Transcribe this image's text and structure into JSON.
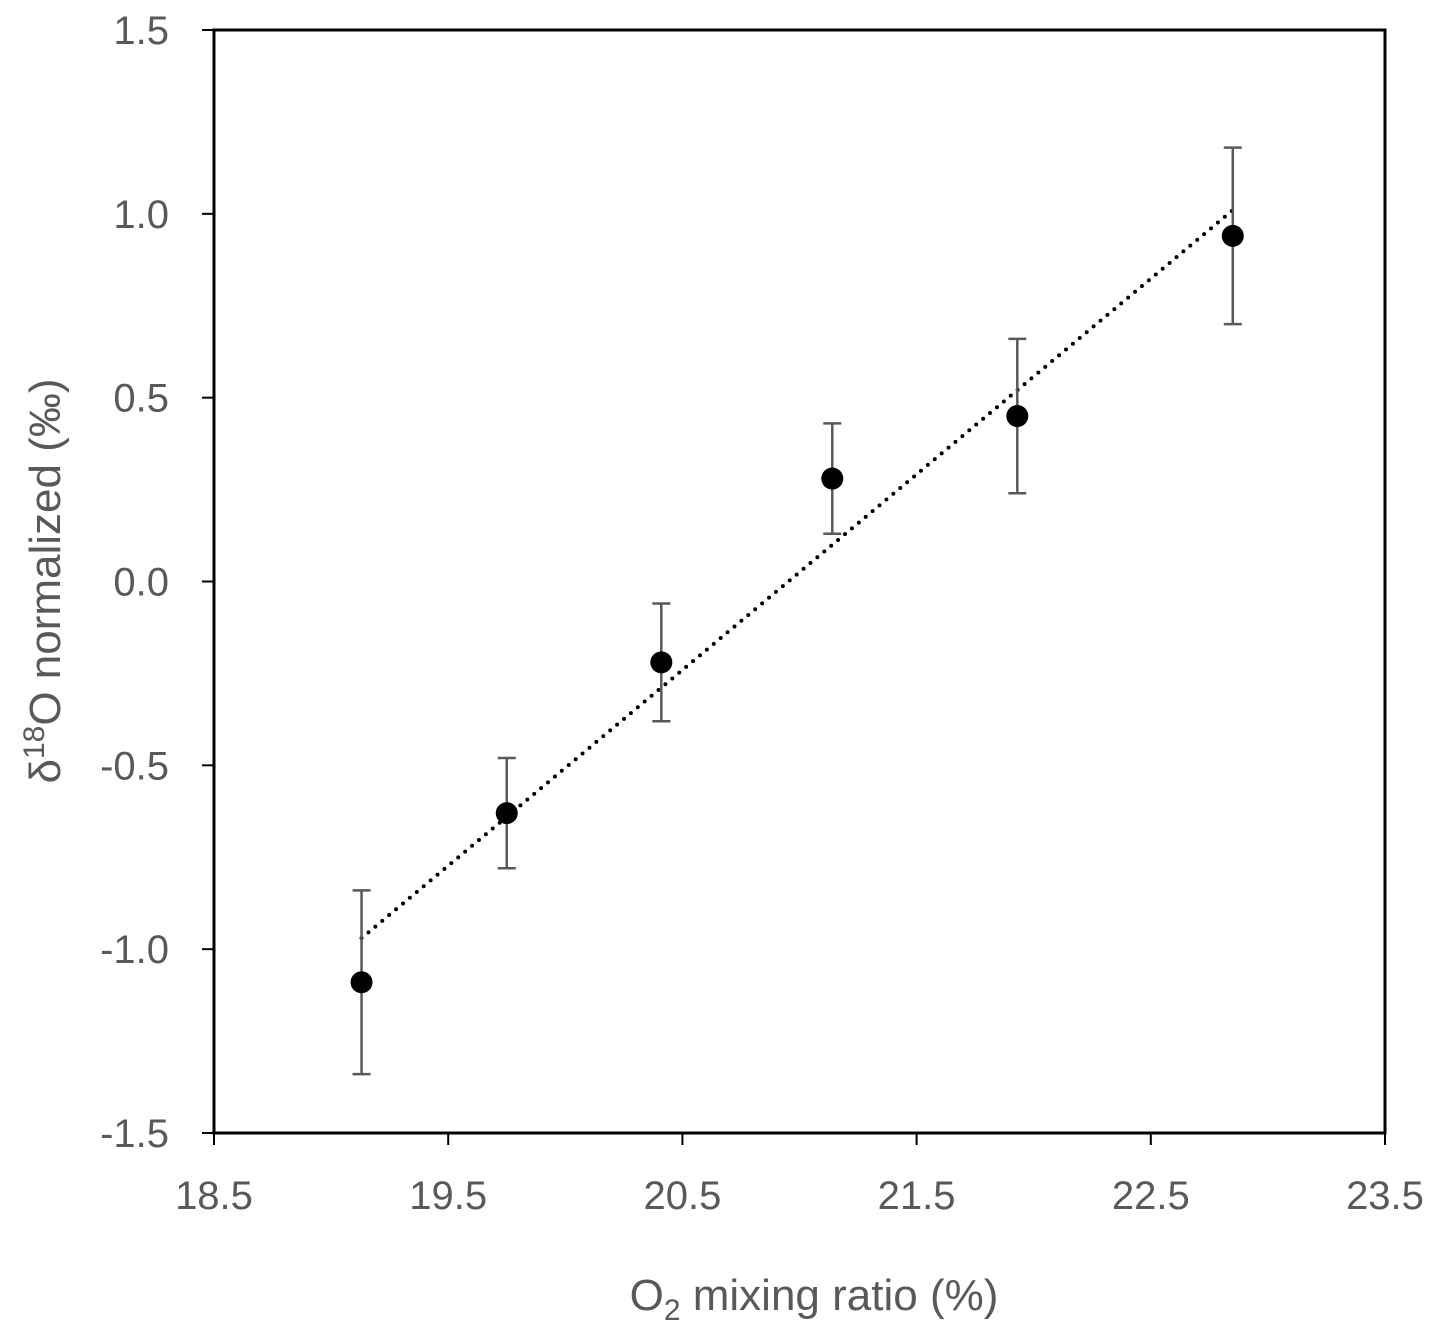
{
  "chart_data": {
    "type": "scatter",
    "title": "",
    "xlabel": {
      "base": "O",
      "sub": "2",
      "rest": " mixing ratio (%)"
    },
    "ylabel": {
      "pre": "δ",
      "sup": "18",
      "rest": "O normalized (‰)"
    },
    "xlim": [
      18.5,
      23.5
    ],
    "ylim": [
      -1.5,
      1.5
    ],
    "x_ticks": [
      18.5,
      19.5,
      20.5,
      21.5,
      22.5,
      23.5
    ],
    "x_tick_labels": [
      "18.5",
      "19.5",
      "20.5",
      "21.5",
      "22.5",
      "23.5"
    ],
    "y_ticks": [
      1.5,
      1.0,
      0.5,
      0.0,
      -0.5,
      -1.0,
      -1.5
    ],
    "y_tick_labels": [
      "1.5",
      "1.0",
      "0.5",
      "0.0",
      "-0.5",
      "-1.0",
      "-1.5"
    ],
    "grid": false,
    "legend": "none",
    "series": [
      {
        "x": [
          19.13,
          19.75,
          20.41,
          21.14,
          21.93,
          22.85
        ],
        "y": [
          -1.09,
          -0.63,
          -0.22,
          0.28,
          0.45,
          0.94
        ],
        "y_error": [
          0.25,
          0.15,
          0.16,
          0.15,
          0.21,
          0.24
        ]
      }
    ],
    "trendline": {
      "style": "dotted",
      "x": [
        19.13,
        22.85
      ],
      "y": [
        -0.97,
        1.01
      ]
    },
    "colors": {
      "marker": "#000000",
      "error_bar": "#595959",
      "trendline": "#000000",
      "axes": "#000000",
      "text": "#595959"
    }
  }
}
